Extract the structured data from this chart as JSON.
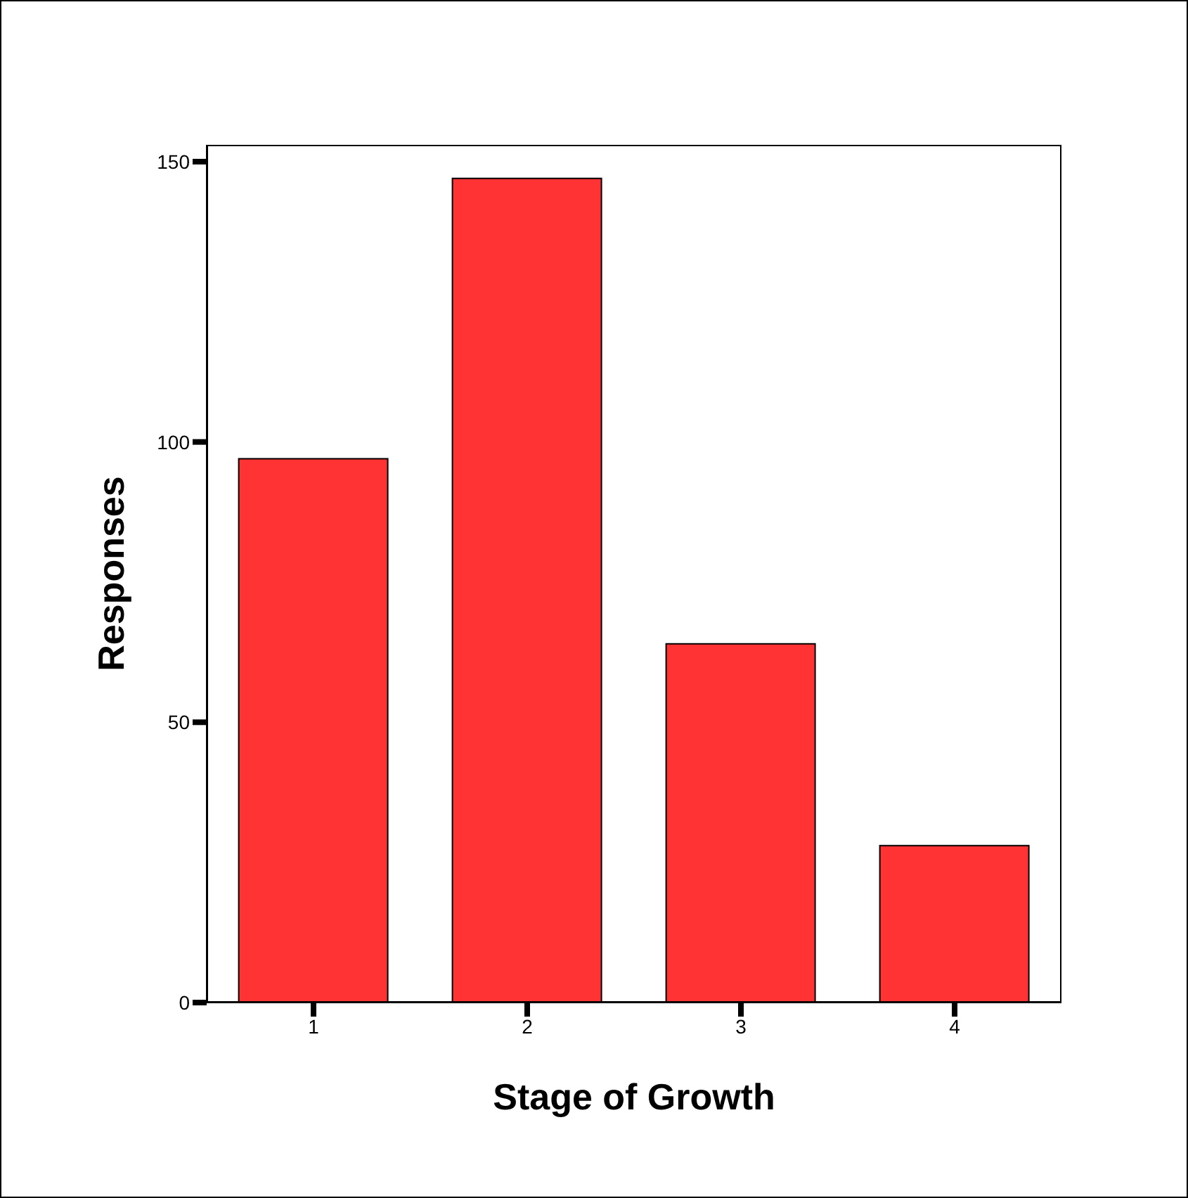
{
  "chart_data": {
    "type": "bar",
    "xlabel": "Stage of Growth",
    "ylabel": "Responses",
    "categories": [
      "1",
      "2",
      "3",
      "4"
    ],
    "values": [
      97,
      147,
      64,
      28
    ],
    "color": "#ff3333",
    "ylim": [
      0,
      153
    ],
    "yticks": [
      0,
      50,
      100,
      150
    ]
  }
}
